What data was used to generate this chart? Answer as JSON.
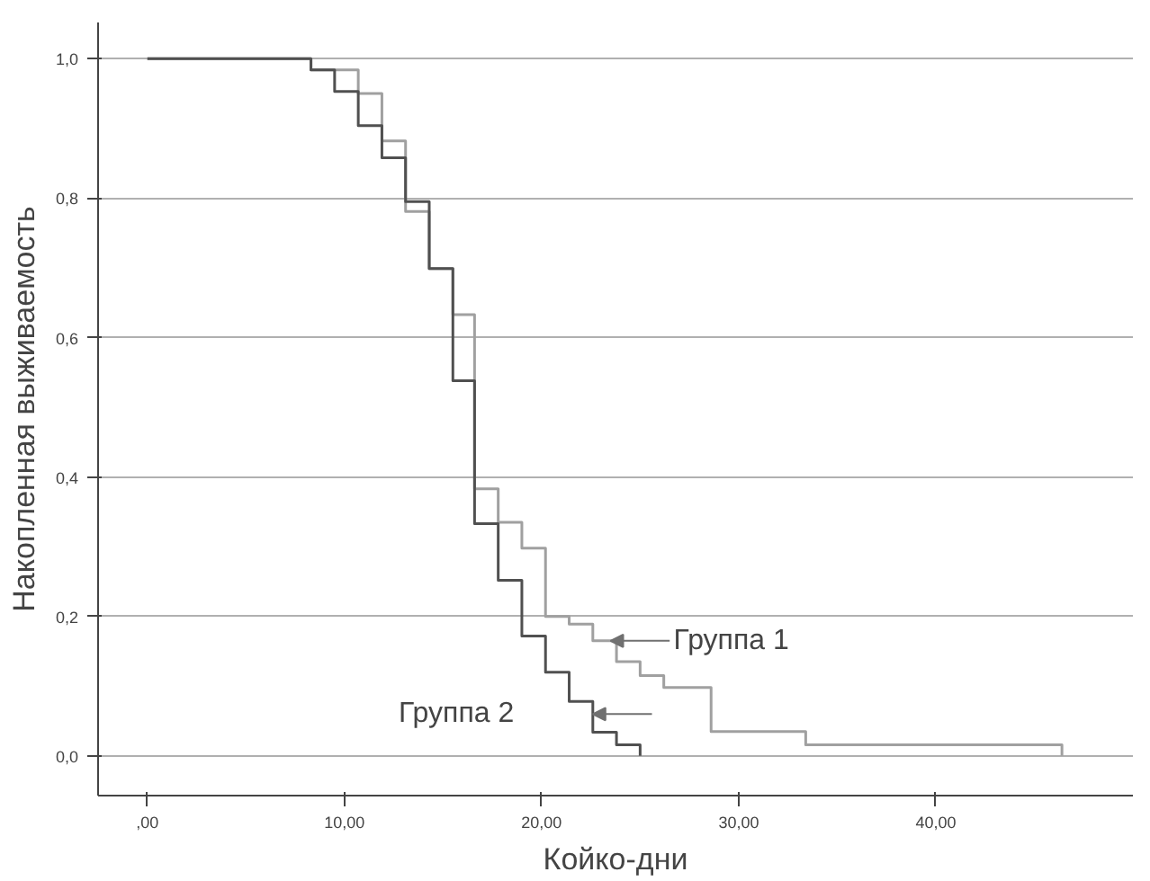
{
  "chart_data": {
    "type": "step",
    "xlabel": "Койко-дни",
    "ylabel": "Накопленная выживаемость",
    "series": [
      {
        "color": "#a0a0a0",
        "x": [
          0,
          8.3,
          10.7,
          11.9,
          13.1,
          14.3,
          15.5,
          16.6,
          17.8,
          19.0,
          20.2,
          21.4,
          22.6,
          23.8,
          25.0,
          26.2,
          28.6,
          33.4,
          46.4
        ],
        "values": [
          1,
          0.984,
          0.95,
          0.882,
          0.781,
          0.699,
          0.633,
          0.383,
          0.335,
          0.298,
          0.2,
          0.189,
          0.165,
          0.135,
          0.115,
          0.098,
          0.035,
          0.016,
          0
        ]
      },
      {
        "color": "#505050",
        "x": [
          0,
          8.3,
          9.5,
          10.7,
          11.9,
          13.1,
          14.3,
          15.5,
          16.6,
          17.8,
          19.0,
          20.2,
          21.4,
          22.6,
          23.8,
          25.0
        ],
        "values": [
          1,
          0.984,
          0.953,
          0.904,
          0.858,
          0.795,
          0.699,
          0.538,
          0.333,
          0.252,
          0.172,
          0.12,
          0.078,
          0.034,
          0.016,
          0
        ]
      }
    ],
    "annotations": [
      {
        "text": "Группа 1",
        "x": 23.5,
        "y": 0.165
      },
      {
        "text": "Группа 2",
        "x": 22.6,
        "y": 0.06
      }
    ],
    "xlim": [
      -2.5,
      50
    ],
    "ylim": [
      -0.057,
      1.052
    ],
    "xticks": [
      {
        "value": 0,
        "label": ",00"
      },
      {
        "value": 10,
        "label": "10,00"
      },
      {
        "value": 20,
        "label": "20,00"
      },
      {
        "value": 30,
        "label": "30,00"
      },
      {
        "value": 40,
        "label": "40,00"
      }
    ],
    "yticks": [
      {
        "value": 0,
        "label": "0,0"
      },
      {
        "value": 0.2,
        "label": "0,2"
      },
      {
        "value": 0.4,
        "label": "0,4"
      },
      {
        "value": 0.6,
        "label": "0,6"
      },
      {
        "value": 0.8,
        "label": "0,8"
      },
      {
        "value": 1.0,
        "label": "1,0"
      }
    ],
    "grid": "y"
  }
}
